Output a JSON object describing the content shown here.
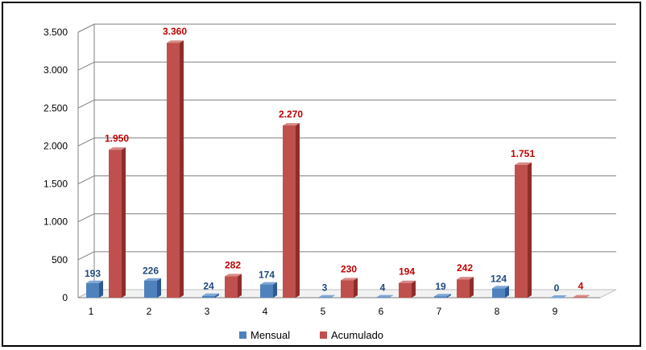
{
  "chart_data": {
    "type": "bar",
    "categories": [
      "1",
      "2",
      "3",
      "4",
      "5",
      "6",
      "7",
      "8",
      "9"
    ],
    "series": [
      {
        "name": "Mensual",
        "values": [
          193,
          226,
          24,
          174,
          3,
          4,
          19,
          124,
          0
        ],
        "labels": [
          "193",
          "226",
          "24",
          "174",
          "3",
          "4",
          "19",
          "124",
          "0"
        ]
      },
      {
        "name": "Acumulado",
        "values": [
          1950,
          3360,
          282,
          2270,
          230,
          194,
          242,
          1751,
          4
        ],
        "labels": [
          "1.950",
          "3.360",
          "282",
          "2.270",
          "230",
          "194",
          "242",
          "1.751",
          "4"
        ]
      }
    ],
    "ylim": [
      0,
      3500
    ],
    "yticks": [
      0,
      500,
      1000,
      1500,
      2000,
      2500,
      3000,
      3500
    ],
    "ytick_labels": [
      "0",
      "500",
      "1.000",
      "1.500",
      "2.000",
      "2.500",
      "3.000",
      "3.500"
    ],
    "grid": true,
    "legend_position": "bottom",
    "style": "3d-column",
    "colors": {
      "Mensual": "#4F81BD",
      "Mensual_dark": "#2E5A91",
      "Mensual_label": "#1F497D",
      "Acumulado": "#C0504D",
      "Acumulado_dark": "#8E2E2B",
      "Acumulado_label": "#C00000",
      "grid": "#7F7F7F",
      "floor": "#BFBFBF"
    }
  }
}
